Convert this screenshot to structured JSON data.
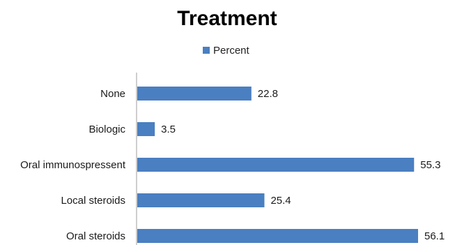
{
  "chart_data": {
    "type": "bar",
    "orientation": "horizontal",
    "title": "Treatment",
    "categories": [
      "None",
      "Biologic",
      "Oral immunospressent",
      "Local steroids",
      "Oral steroids"
    ],
    "series": [
      {
        "name": "Percent",
        "values": [
          22.8,
          3.5,
          55.3,
          25.4,
          56.1
        ]
      }
    ],
    "xlim": [
      0,
      60
    ],
    "grid": false,
    "legend_position": "top-center",
    "color": "#4a7fc1"
  }
}
